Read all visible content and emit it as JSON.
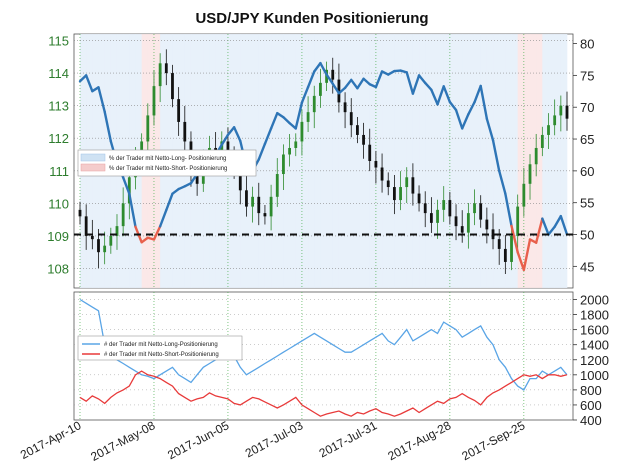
{
  "chart_data": [
    {
      "type": "candlestick+line",
      "title": "USD/JPY Kunden Positionierung",
      "left_axis": {
        "ticks": [
          108,
          109,
          110,
          111,
          112,
          113,
          114,
          115
        ],
        "ylim": [
          107.4,
          115.2
        ]
      },
      "right_axis": {
        "ticks": [
          45,
          50,
          55,
          60,
          65,
          70,
          75,
          80
        ],
        "ylim": [
          41.6,
          81.5
        ]
      },
      "x_ticks": [
        "2017-Apr-10",
        "2017-May-08",
        "2017-Jun-05",
        "2017-Jul-03",
        "2017-Jul-31",
        "2017-Aug-28",
        "2017-Sep-25"
      ],
      "reference_line": 50,
      "legend": [
        {
          "label": "% der Trader mit Netto-Long- Positionierung",
          "color": "#cfe2f3"
        },
        {
          "label": "% der Trader mit Netto-Short- Positionierung",
          "color": "#f4cccc"
        }
      ],
      "legend_placement": "left",
      "colors": {
        "ratio_line_long": "#2e75b6",
        "ratio_line_short": "#e8604c",
        "up_candle": "#2e8b2e",
        "down_candle": "#111111",
        "reference": "#111111"
      },
      "price_close": [
        109.6,
        109.0,
        108.9,
        108.5,
        108.7,
        109.0,
        109.3,
        110.0,
        110.8,
        111.3,
        111.9,
        112.7,
        113.6,
        114.3,
        114.0,
        113.2,
        112.5,
        111.9,
        111.0,
        110.6,
        111.4,
        111.7,
        111.4,
        111.9,
        111.5,
        111.0,
        110.4,
        109.9,
        110.2,
        109.7,
        109.6,
        110.2,
        110.9,
        111.5,
        111.7,
        111.9,
        112.5,
        112.8,
        113.3,
        113.7,
        114.1,
        113.8,
        113.1,
        112.8,
        112.4,
        112.1,
        111.8,
        111.3,
        111.1,
        110.7,
        110.5,
        110.1,
        110.5,
        110.8,
        110.3,
        110.0,
        109.7,
        109.4,
        109.8,
        110.1,
        109.6,
        109.3,
        109.1,
        109.7,
        110.0,
        109.5,
        109.2,
        108.9,
        108.6,
        108.2,
        109.0,
        109.9,
        110.6,
        111.2,
        111.7,
        112.1,
        112.4,
        112.7,
        113.0,
        112.6
      ]
    },
    {
      "type": "line",
      "right_axis": {
        "ticks": [
          400,
          600,
          800,
          1000,
          1200,
          1400,
          1600,
          1800,
          2000
        ],
        "ylim": [
          400,
          2100
        ]
      },
      "series": [
        {
          "name": "# der Trader mit Netto-Long-Positionierung",
          "color": "#5aa5e6",
          "values": [
            2000,
            1950,
            1900,
            1850,
            1400,
            1280,
            1200,
            1150,
            1100,
            1050,
            1000,
            980,
            950,
            1000,
            1050,
            1100,
            1000,
            950,
            900,
            1000,
            1100,
            1150,
            1200,
            1250,
            1300,
            1250,
            1100,
            1000,
            1050,
            1100,
            1150,
            1200,
            1250,
            1300,
            1350,
            1400,
            1450,
            1500,
            1550,
            1500,
            1450,
            1400,
            1350,
            1300,
            1300,
            1350,
            1400,
            1450,
            1500,
            1550,
            1450,
            1400,
            1500,
            1600,
            1450,
            1500,
            1550,
            1600,
            1550,
            1700,
            1650,
            1600,
            1500,
            1550,
            1600,
            1650,
            1500,
            1400,
            1200,
            1100,
            950,
            850,
            800,
            950,
            950,
            1050,
            1000,
            1050,
            1100,
            1000
          ]
        },
        {
          "name": "# der Trader mit Netto-Short-Positionierung",
          "color": "#e83a3a",
          "values": [
            700,
            650,
            720,
            680,
            620,
            700,
            760,
            800,
            850,
            1000,
            1050,
            1000,
            980,
            950,
            900,
            850,
            750,
            700,
            650,
            680,
            700,
            760,
            720,
            700,
            680,
            620,
            600,
            650,
            700,
            680,
            640,
            600,
            560,
            600,
            650,
            700,
            600,
            550,
            500,
            450,
            480,
            500,
            520,
            480,
            450,
            500,
            480,
            520,
            550,
            500,
            480,
            450,
            480,
            520,
            560,
            500,
            550,
            600,
            650,
            620,
            680,
            700,
            750,
            700,
            660,
            600,
            700,
            760,
            800,
            850,
            900,
            950,
            1000,
            980,
            1000,
            950,
            1000,
            1000,
            980,
            1000
          ]
        }
      ],
      "x_ticks": [
        "2017-Apr-10",
        "2017-May-08",
        "2017-Jun-05",
        "2017-Jul-03",
        "2017-Jul-31",
        "2017-Aug-28",
        "2017-Sep-25"
      ]
    }
  ]
}
